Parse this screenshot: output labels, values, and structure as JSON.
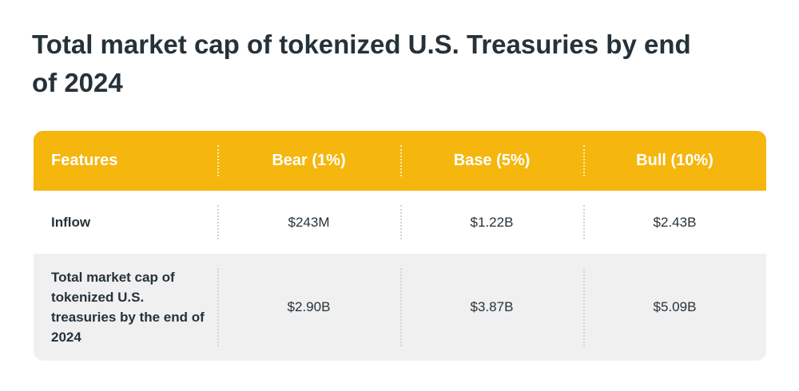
{
  "title": "Total market cap of tokenized U.S. Treasuries by end of 2024",
  "table": {
    "headers": [
      "Features",
      "Bear (1%)",
      "Base (5%)",
      "Bull (10%)"
    ],
    "rows": [
      {
        "label": "Inflow",
        "values": [
          "$243M",
          "$1.22B",
          "$2.43B"
        ]
      },
      {
        "label": "Total market cap of tokenized U.S. treasuries by the end of 2024",
        "values": [
          "$2.90B",
          "$3.87B",
          "$5.09B"
        ]
      }
    ]
  },
  "colors": {
    "header_bg": "#f5b60e",
    "row_alt_bg": "#f0f0f0",
    "text": "#26323a"
  }
}
